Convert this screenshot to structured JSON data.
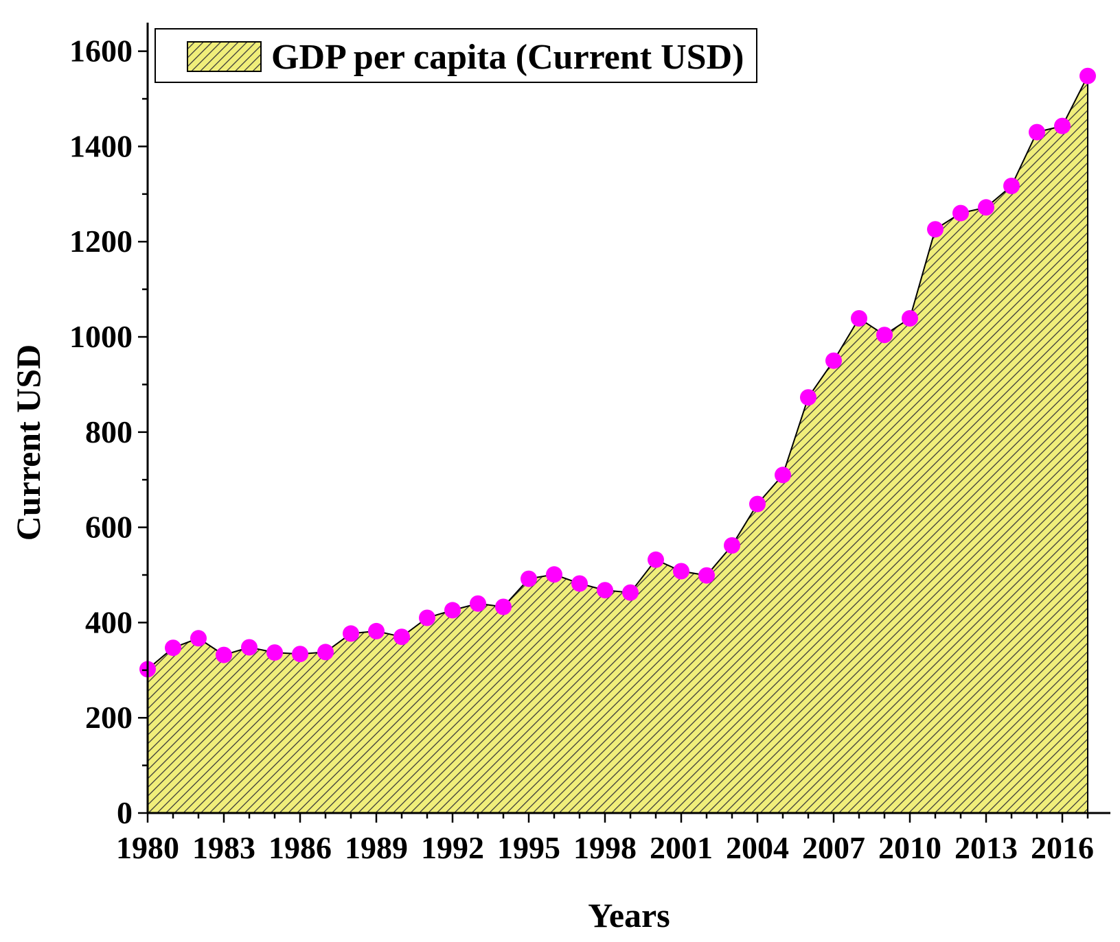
{
  "chart_data": {
    "type": "area",
    "title": "",
    "xlabel": "Years",
    "ylabel": "Current USD",
    "legend": {
      "label": "GDP per capita (Current USD)",
      "position": "top-left"
    },
    "xlim": [
      1980,
      2017
    ],
    "ylim": [
      0,
      1660
    ],
    "x_ticks": [
      1980,
      1983,
      1986,
      1989,
      1992,
      1995,
      1998,
      2001,
      2004,
      2007,
      2010,
      2013,
      2016
    ],
    "y_ticks": [
      0,
      200,
      400,
      600,
      800,
      1000,
      1200,
      1400,
      1600
    ],
    "grid": false,
    "colors": {
      "fill": "#f0ee7a",
      "hatch": "#3a3a3a",
      "marker": "#ff00ff",
      "line": "#000000"
    },
    "series": [
      {
        "name": "GDP per capita (Current USD)",
        "x": [
          1980,
          1981,
          1982,
          1983,
          1984,
          1985,
          1986,
          1987,
          1988,
          1989,
          1990,
          1991,
          1992,
          1993,
          1994,
          1995,
          1996,
          1997,
          1998,
          1999,
          2000,
          2001,
          2002,
          2003,
          2004,
          2005,
          2006,
          2007,
          2008,
          2009,
          2010,
          2011,
          2012,
          2013,
          2014,
          2015,
          2016,
          2017
        ],
        "values": [
          302,
          347,
          367,
          332,
          348,
          337,
          334,
          338,
          377,
          382,
          370,
          410,
          426,
          440,
          433,
          492,
          501,
          482,
          468,
          463,
          532,
          508,
          499,
          562,
          649,
          710,
          873,
          950,
          1039,
          1004,
          1039,
          1226,
          1260,
          1272,
          1317,
          1430,
          1443,
          1548
        ]
      }
    ]
  }
}
